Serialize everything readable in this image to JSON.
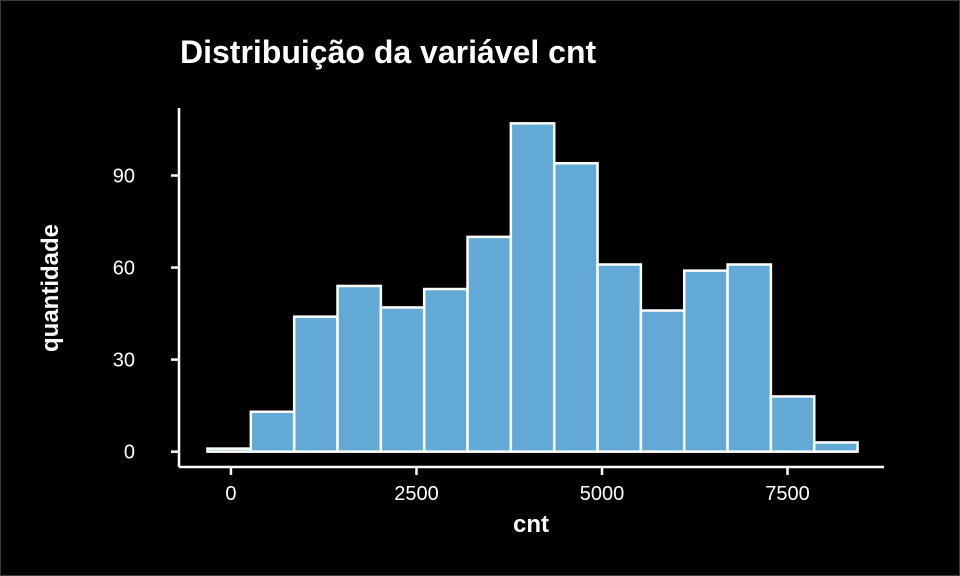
{
  "chart_data": {
    "type": "bar",
    "title": "Distribuição da variável cnt",
    "xlabel": "cnt",
    "ylabel": "quantidade",
    "bins": [
      {
        "x0": -316,
        "x1": 268,
        "count": 1
      },
      {
        "x0": 268,
        "x1": 852,
        "count": 13
      },
      {
        "x0": 852,
        "x1": 1436,
        "count": 44
      },
      {
        "x0": 1436,
        "x1": 2020,
        "count": 54
      },
      {
        "x0": 2020,
        "x1": 2604,
        "count": 47
      },
      {
        "x0": 2604,
        "x1": 3188,
        "count": 53
      },
      {
        "x0": 3188,
        "x1": 3772,
        "count": 70
      },
      {
        "x0": 3772,
        "x1": 4356,
        "count": 107
      },
      {
        "x0": 4356,
        "x1": 4940,
        "count": 94
      },
      {
        "x0": 4940,
        "x1": 5524,
        "count": 61
      },
      {
        "x0": 5524,
        "x1": 6108,
        "count": 46
      },
      {
        "x0": 6108,
        "x1": 6692,
        "count": 59
      },
      {
        "x0": 6692,
        "x1": 7276,
        "count": 61
      },
      {
        "x0": 7276,
        "x1": 7860,
        "count": 18
      },
      {
        "x0": 7860,
        "x1": 8444,
        "count": 3
      }
    ],
    "x_ticks": [
      0,
      2500,
      5000,
      7500
    ],
    "y_ticks": [
      0,
      30,
      60,
      90
    ],
    "xlim": [
      -700,
      8800
    ],
    "ylim": [
      -5,
      112
    ],
    "bar_fill": "#62a9d6",
    "bar_stroke": "#ffffff",
    "background": "#000000",
    "grid": false
  }
}
